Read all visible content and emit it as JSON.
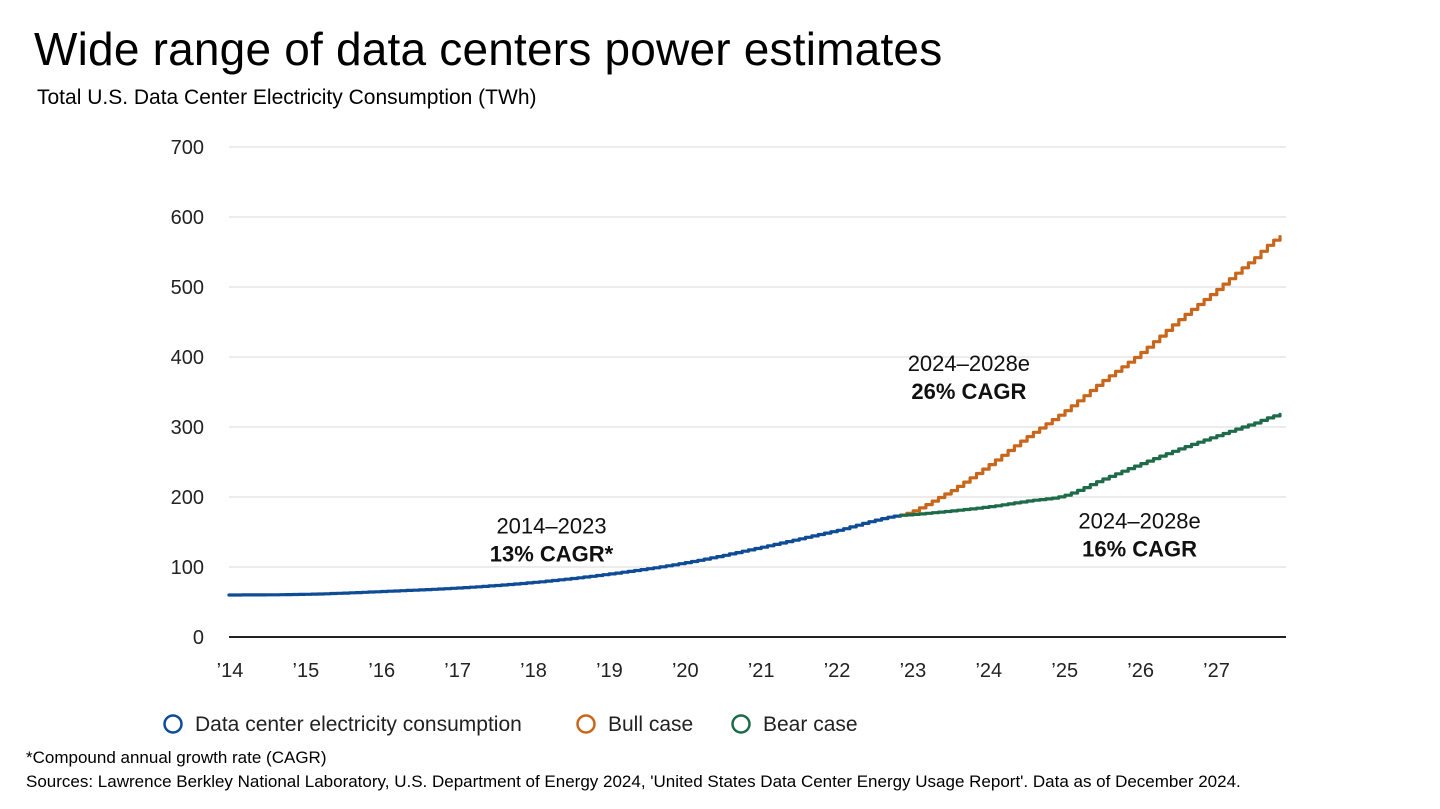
{
  "chart_data": {
    "type": "line",
    "title": "Wide range of data centers power estimates",
    "subtitle": "Total U.S. Data Center Electricity Consumption (TWh)",
    "ylim": [
      0,
      700
    ],
    "yticks": [
      0,
      100,
      200,
      300,
      400,
      500,
      600,
      700
    ],
    "xlim": [
      2014,
      2027.85
    ],
    "xticks": [
      {
        "value": 2014,
        "label": "’14"
      },
      {
        "value": 2015,
        "label": "’15"
      },
      {
        "value": 2016,
        "label": "’16"
      },
      {
        "value": 2017,
        "label": "’17"
      },
      {
        "value": 2018,
        "label": "’18"
      },
      {
        "value": 2019,
        "label": "’19"
      },
      {
        "value": 2020,
        "label": "’20"
      },
      {
        "value": 2021,
        "label": "’21"
      },
      {
        "value": 2022,
        "label": "’22"
      },
      {
        "value": 2023,
        "label": "’23"
      },
      {
        "value": 2024,
        "label": "’24"
      },
      {
        "value": 2025,
        "label": "’25"
      },
      {
        "value": 2026,
        "label": "’26"
      },
      {
        "value": 2027,
        "label": "’27"
      }
    ],
    "grid": true,
    "legend_position": "bottom",
    "series": [
      {
        "name": "Data center electricity consumption",
        "color": "#0f4c96",
        "x": [
          2014,
          2015,
          2016,
          2017,
          2018,
          2019,
          2020,
          2021,
          2022,
          2022.85
        ],
        "y": [
          60,
          61,
          65,
          70,
          78,
          90,
          106,
          128,
          152,
          174
        ]
      },
      {
        "name": "Bull case",
        "color": "#c8661c",
        "x": [
          2022.85,
          2023.5,
          2024,
          2024.5,
          2025,
          2025.5,
          2026,
          2026.5,
          2027,
          2027.5,
          2027.85
        ],
        "y": [
          174,
          208,
          245,
          285,
          322,
          365,
          405,
          452,
          495,
          540,
          572
        ]
      },
      {
        "name": "Bear case",
        "color": "#1e6b4a",
        "x": [
          2022.85,
          2023.5,
          2024,
          2024.5,
          2025,
          2025.5,
          2026,
          2026.5,
          2027,
          2027.5,
          2027.85
        ],
        "y": [
          174,
          180,
          186,
          194,
          202,
          225,
          247,
          268,
          287,
          305,
          318
        ]
      }
    ],
    "annotations": [
      {
        "period": "2014–2023",
        "rate": "13% CAGR*",
        "x": 2018.25,
        "y": 148
      },
      {
        "period": "2024–2028e",
        "rate": "26% CAGR",
        "x": 2023.75,
        "y": 380
      },
      {
        "period": "2024–2028e",
        "rate": "16% CAGR",
        "x": 2026.0,
        "y": 155
      }
    ]
  },
  "footnote": "*Compound annual growth rate (CAGR)",
  "sources": "Sources: Lawrence Berkley National Laboratory, U.S. Department of Energy 2024, 'United States Data Center Energy Usage Report'. Data as of December 2024."
}
